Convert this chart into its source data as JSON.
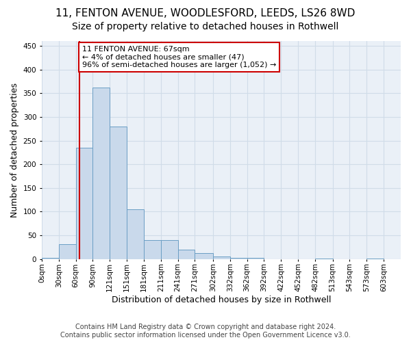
{
  "title_line1": "11, FENTON AVENUE, WOODLESFORD, LEEDS, LS26 8WD",
  "title_line2": "Size of property relative to detached houses in Rothwell",
  "xlabel": "Distribution of detached houses by size in Rothwell",
  "ylabel": "Number of detached properties",
  "bar_color": "#c9d9eb",
  "bar_edge_color": "#6a9ec4",
  "property_size": 67,
  "property_line_color": "#cc0000",
  "annotation_text": "11 FENTON AVENUE: 67sqm\n← 4% of detached houses are smaller (47)\n96% of semi-detached houses are larger (1,052) →",
  "annotation_box_color": "#cc0000",
  "bin_starts": [
    0,
    30,
    60,
    90,
    120,
    150,
    180,
    210,
    240,
    270,
    302,
    332,
    362,
    392,
    422,
    452,
    482,
    513,
    543,
    573,
    603
  ],
  "bar_heights": [
    2,
    32,
    235,
    362,
    280,
    105,
    40,
    40,
    20,
    13,
    6,
    3,
    2,
    0,
    0,
    0,
    1,
    0,
    0,
    1
  ],
  "ylim": [
    0,
    460
  ],
  "yticks": [
    0,
    50,
    100,
    150,
    200,
    250,
    300,
    350,
    400,
    450
  ],
  "xtick_labels": [
    "0sqm",
    "30sqm",
    "60sqm",
    "90sqm",
    "121sqm",
    "151sqm",
    "181sqm",
    "211sqm",
    "241sqm",
    "271sqm",
    "302sqm",
    "332sqm",
    "362sqm",
    "392sqm",
    "422sqm",
    "452sqm",
    "482sqm",
    "513sqm",
    "543sqm",
    "573sqm",
    "603sqm"
  ],
  "grid_color": "#d0dce8",
  "background_color": "#eaf0f7",
  "footnote": "Contains HM Land Registry data © Crown copyright and database right 2024.\nContains public sector information licensed under the Open Government Licence v3.0.",
  "title_fontsize": 11,
  "subtitle_fontsize": 10,
  "axis_label_fontsize": 9,
  "tick_fontsize": 7.5,
  "footnote_fontsize": 7
}
